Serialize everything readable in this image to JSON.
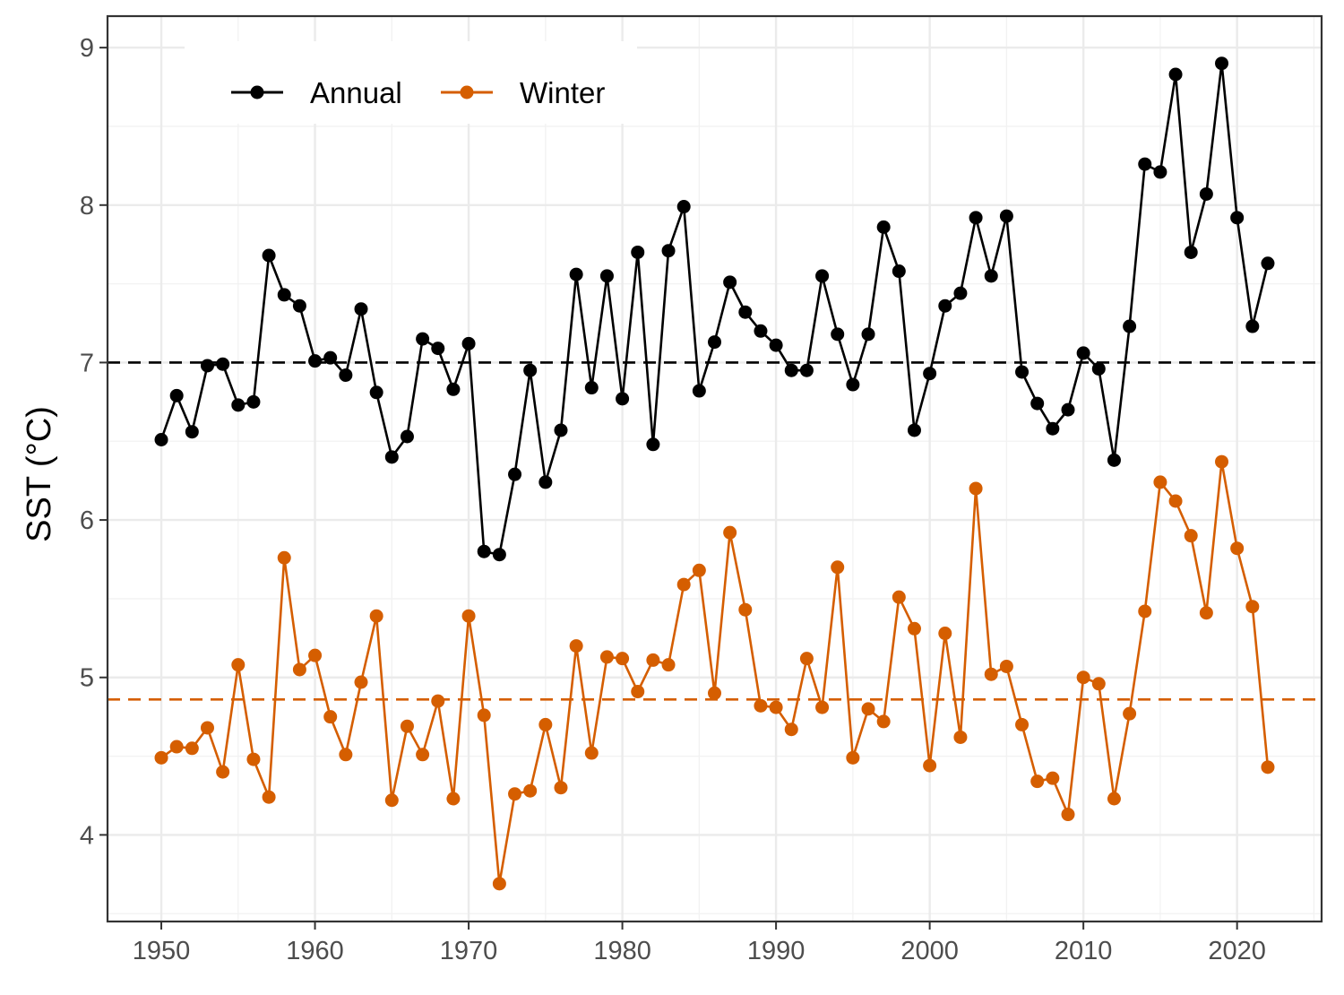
{
  "chart_data": {
    "type": "line",
    "title": "",
    "xlabel": "",
    "ylabel": "SST (°C)",
    "xlim": [
      1946.5,
      2025.5
    ],
    "ylim": [
      3.45,
      9.2
    ],
    "xticks": [
      1950,
      1960,
      1970,
      1980,
      1990,
      2000,
      2010,
      2020
    ],
    "yticks": [
      4,
      5,
      6,
      7,
      8,
      9
    ],
    "grid": true,
    "legend_position": "top-left",
    "x": [
      1950,
      1951,
      1952,
      1953,
      1954,
      1955,
      1956,
      1957,
      1958,
      1959,
      1960,
      1961,
      1962,
      1963,
      1964,
      1965,
      1966,
      1967,
      1968,
      1969,
      1970,
      1971,
      1972,
      1973,
      1974,
      1975,
      1976,
      1977,
      1978,
      1979,
      1980,
      1981,
      1982,
      1983,
      1984,
      1985,
      1986,
      1987,
      1988,
      1989,
      1990,
      1991,
      1992,
      1993,
      1994,
      1995,
      1996,
      1997,
      1998,
      1999,
      2000,
      2001,
      2002,
      2003,
      2004,
      2005,
      2006,
      2007,
      2008,
      2009,
      2010,
      2011,
      2012,
      2013,
      2014,
      2015,
      2016,
      2017,
      2018,
      2019,
      2020,
      2021,
      2022
    ],
    "series": [
      {
        "name": "Annual",
        "color": "#000000",
        "mean": 7.0,
        "values": [
          6.51,
          6.79,
          6.56,
          6.98,
          6.99,
          6.73,
          6.75,
          7.68,
          7.43,
          7.36,
          7.01,
          7.03,
          6.92,
          7.34,
          6.81,
          6.4,
          6.53,
          7.15,
          7.09,
          6.83,
          7.12,
          5.8,
          5.78,
          6.29,
          6.95,
          6.24,
          6.57,
          7.56,
          6.84,
          7.55,
          6.77,
          7.7,
          6.48,
          7.71,
          7.99,
          6.82,
          7.13,
          7.51,
          7.32,
          7.2,
          7.11,
          6.95,
          6.95,
          7.55,
          7.18,
          6.86,
          7.18,
          7.86,
          7.58,
          6.57,
          6.93,
          7.36,
          7.44,
          7.92,
          7.55,
          7.93,
          6.94,
          6.74,
          6.58,
          6.7,
          7.06,
          6.96,
          6.38,
          7.23,
          8.26,
          8.21,
          8.83,
          7.7,
          8.07,
          8.9,
          7.92,
          7.23,
          7.63
        ]
      },
      {
        "name": "Winter",
        "color": "#d55e00",
        "mean": 4.86,
        "values": [
          4.49,
          4.56,
          4.55,
          4.68,
          4.4,
          5.08,
          4.48,
          4.24,
          5.76,
          5.05,
          5.14,
          4.75,
          4.51,
          4.97,
          5.39,
          4.22,
          4.69,
          4.51,
          4.85,
          4.23,
          5.39,
          4.76,
          3.69,
          4.26,
          4.28,
          4.7,
          4.3,
          5.2,
          4.52,
          5.13,
          5.12,
          4.91,
          5.11,
          5.08,
          5.59,
          5.68,
          4.9,
          5.92,
          5.43,
          4.82,
          4.81,
          4.67,
          5.12,
          4.81,
          5.7,
          4.49,
          4.8,
          4.72,
          5.51,
          5.31,
          4.44,
          5.28,
          4.62,
          6.2,
          5.02,
          5.07,
          4.7,
          4.34,
          4.36,
          4.13,
          5.0,
          4.96,
          4.23,
          4.77,
          5.42,
          6.24,
          6.12,
          5.9,
          5.41,
          6.37,
          5.82,
          5.45,
          4.43
        ]
      }
    ]
  }
}
